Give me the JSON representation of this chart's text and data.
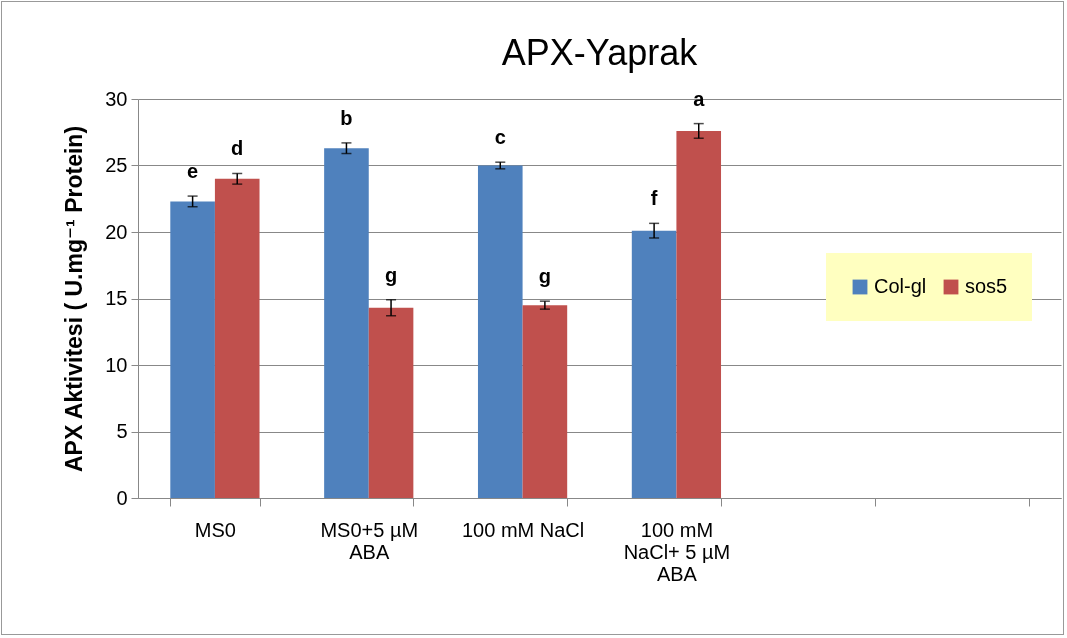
{
  "chart_data": {
    "type": "bar",
    "title": "APX-Yaprak",
    "ylabel": "APX Aktivitesi ( U.mg⁻¹ Protein)",
    "categories": [
      "MS0",
      "MS0+5 µM ABA",
      "100 mM NaCl",
      "100 mM NaCl+ 5 µM ABA",
      null,
      null
    ],
    "series": [
      {
        "name": "Col-gl",
        "color": "#4f81bd",
        "values": [
          22.3,
          26.3,
          25.0,
          20.1,
          null,
          null
        ],
        "errors": [
          0.4,
          0.4,
          0.25,
          0.55,
          null,
          null
        ],
        "value_labels": [
          "e",
          "b",
          "c",
          "f",
          null,
          null
        ]
      },
      {
        "name": "sos5",
        "color": "#c0504d",
        "values": [
          24.0,
          14.3,
          14.5,
          27.6,
          null,
          null
        ],
        "errors": [
          0.4,
          0.6,
          0.3,
          0.55,
          null,
          null
        ],
        "value_labels": [
          "d",
          "g",
          "g",
          "a",
          null,
          null
        ]
      }
    ],
    "ylim": [
      0,
      30
    ],
    "yticks": [
      0,
      5,
      10,
      15,
      20,
      25,
      30
    ],
    "grid": "y",
    "legend": "right"
  }
}
